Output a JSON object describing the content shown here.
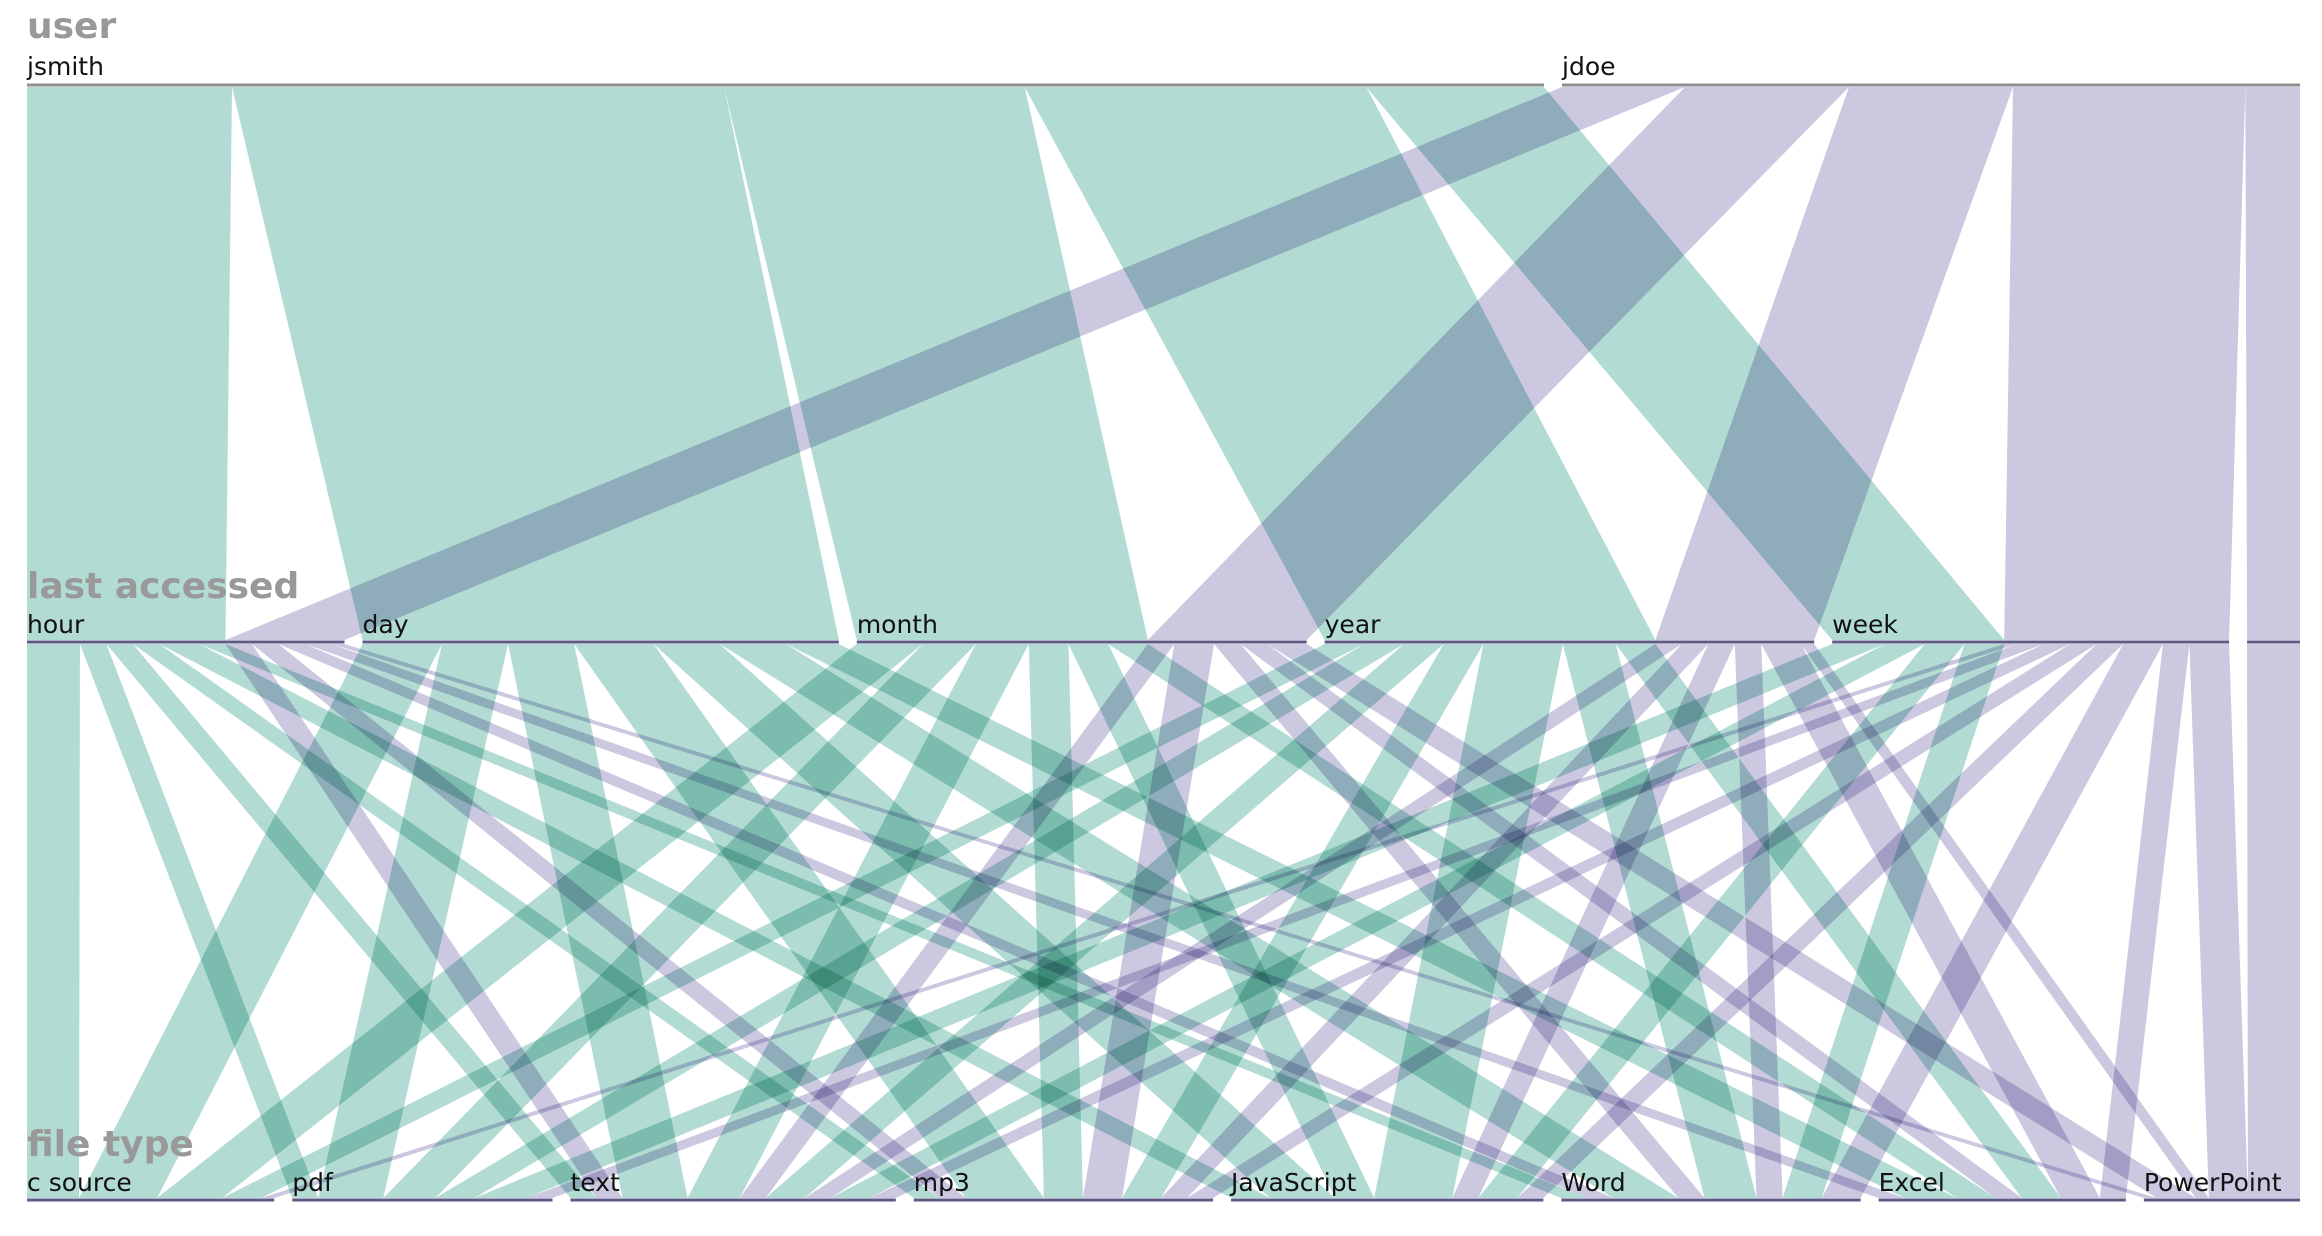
{
  "chart_data": {
    "type": "parallel-sets",
    "dimensions": [
      {
        "name": "user",
        "categories": [
          "jsmith",
          "jdoe"
        ]
      },
      {
        "name": "last accessed",
        "categories": [
          "hour",
          "day",
          "month",
          "year",
          "week"
        ]
      },
      {
        "name": "file type",
        "categories": [
          "c source",
          "pdf",
          "text",
          "mp3",
          "JavaScript",
          "Word",
          "Excel",
          "PowerPoint"
        ]
      }
    ],
    "colors": {
      "jsmith": "#b2dbd3",
      "jdoe": "#cbc8e0",
      "axis": "#5e5a86"
    },
    "flows": [
      {
        "user": "jsmith",
        "last accessed": "hour",
        "file type": "c source",
        "value": 4
      },
      {
        "user": "jsmith",
        "last accessed": "hour",
        "file type": "JavaScript",
        "value": 3
      },
      {
        "user": "jsmith",
        "last accessed": "hour",
        "file type": "text",
        "value": 2
      },
      {
        "user": "jsmith",
        "last accessed": "hour",
        "file type": "mp3",
        "value": 2
      },
      {
        "user": "jsmith",
        "last accessed": "hour",
        "file type": "pdf",
        "value": 2
      },
      {
        "user": "jsmith",
        "last accessed": "hour",
        "file type": "Word",
        "value": 2
      },
      {
        "user": "jsmith",
        "last accessed": "day",
        "file type": "c source",
        "value": 6
      },
      {
        "user": "jsmith",
        "last accessed": "day",
        "file type": "pdf",
        "value": 5
      },
      {
        "user": "jsmith",
        "last accessed": "day",
        "file type": "text",
        "value": 5
      },
      {
        "user": "jsmith",
        "last accessed": "day",
        "file type": "mp3",
        "value": 6
      },
      {
        "user": "jsmith",
        "last accessed": "day",
        "file type": "JavaScript",
        "value": 5
      },
      {
        "user": "jsmith",
        "last accessed": "day",
        "file type": "Word",
        "value": 5
      },
      {
        "user": "jsmith",
        "last accessed": "day",
        "file type": "Excel",
        "value": 4
      },
      {
        "user": "jsmith",
        "last accessed": "month",
        "file type": "c source",
        "value": 5
      },
      {
        "user": "jsmith",
        "last accessed": "month",
        "file type": "pdf",
        "value": 4
      },
      {
        "user": "jsmith",
        "last accessed": "month",
        "file type": "text",
        "value": 4
      },
      {
        "user": "jsmith",
        "last accessed": "month",
        "file type": "mp3",
        "value": 3
      },
      {
        "user": "jsmith",
        "last accessed": "month",
        "file type": "JavaScript",
        "value": 3
      },
      {
        "user": "jsmith",
        "last accessed": "month",
        "file type": "Excel",
        "value": 3
      },
      {
        "user": "jsmith",
        "last accessed": "year",
        "file type": "c source",
        "value": 3
      },
      {
        "user": "jsmith",
        "last accessed": "year",
        "file type": "pdf",
        "value": 3
      },
      {
        "user": "jsmith",
        "last accessed": "year",
        "file type": "text",
        "value": 3
      },
      {
        "user": "jsmith",
        "last accessed": "year",
        "file type": "mp3",
        "value": 3
      },
      {
        "user": "jsmith",
        "last accessed": "year",
        "file type": "JavaScript",
        "value": 6
      },
      {
        "user": "jsmith",
        "last accessed": "year",
        "file type": "Word",
        "value": 4
      },
      {
        "user": "jsmith",
        "last accessed": "year",
        "file type": "Excel",
        "value": 3
      },
      {
        "user": "jsmith",
        "last accessed": "week",
        "file type": "pdf",
        "value": 4
      },
      {
        "user": "jsmith",
        "last accessed": "week",
        "file type": "text",
        "value": 3
      },
      {
        "user": "jsmith",
        "last accessed": "week",
        "file type": "JavaScript",
        "value": 3
      },
      {
        "user": "jsmith",
        "last accessed": "week",
        "file type": "Word",
        "value": 3
      },
      {
        "user": "jdoe",
        "last accessed": "hour",
        "file type": "text",
        "value": 2
      },
      {
        "user": "jdoe",
        "last accessed": "hour",
        "file type": "mp3",
        "value": 2
      },
      {
        "user": "jdoe",
        "last accessed": "hour",
        "file type": "Word",
        "value": 2
      },
      {
        "user": "jdoe",
        "last accessed": "hour",
        "file type": "Excel",
        "value": 2
      },
      {
        "user": "jdoe",
        "last accessed": "hour",
        "file type": "PowerPoint",
        "value": 1
      },
      {
        "user": "jdoe",
        "last accessed": "month",
        "file type": "text",
        "value": 2
      },
      {
        "user": "jdoe",
        "last accessed": "month",
        "file type": "mp3",
        "value": 3
      },
      {
        "user": "jdoe",
        "last accessed": "month",
        "file type": "Word",
        "value": 2
      },
      {
        "user": "jdoe",
        "last accessed": "month",
        "file type": "Excel",
        "value": 2
      },
      {
        "user": "jdoe",
        "last accessed": "month",
        "file type": "PowerPoint",
        "value": 3
      },
      {
        "user": "jdoe",
        "last accessed": "year",
        "file type": "text",
        "value": 2
      },
      {
        "user": "jdoe",
        "last accessed": "year",
        "file type": "mp3",
        "value": 2
      },
      {
        "user": "jdoe",
        "last accessed": "year",
        "file type": "JavaScript",
        "value": 2
      },
      {
        "user": "jdoe",
        "last accessed": "year",
        "file type": "Word",
        "value": 2
      },
      {
        "user": "jdoe",
        "last accessed": "year",
        "file type": "Excel",
        "value": 3
      },
      {
        "user": "jdoe",
        "last accessed": "year",
        "file type": "PowerPoint",
        "value": 1
      },
      {
        "user": "jdoe",
        "last accessed": "week",
        "file type": "text",
        "value": 2
      },
      {
        "user": "jdoe",
        "last accessed": "week",
        "file type": "mp3",
        "value": 2
      },
      {
        "user": "jdoe",
        "last accessed": "week",
        "file type": "JavaScript",
        "value": 2
      },
      {
        "user": "jdoe",
        "last accessed": "week",
        "file type": "Word",
        "value": 3
      },
      {
        "user": "jdoe",
        "last accessed": "week",
        "file type": "Excel",
        "value": 2
      },
      {
        "user": "jdoe",
        "last accessed": "week",
        "file type": "PowerPoint",
        "value": 3
      },
      {
        "user": "jdoe",
        "last accessed": "week",
        "file type": "pdf",
        "value": 2
      },
      {
        "user": "jdoe",
        "last accessed": "week",
        "file type": "c source",
        "value": 1
      },
      {
        "user": "jdoe",
        "last accessed": "(unlabeled)",
        "file type": "PowerPoint",
        "value": 4
      }
    ]
  }
}
